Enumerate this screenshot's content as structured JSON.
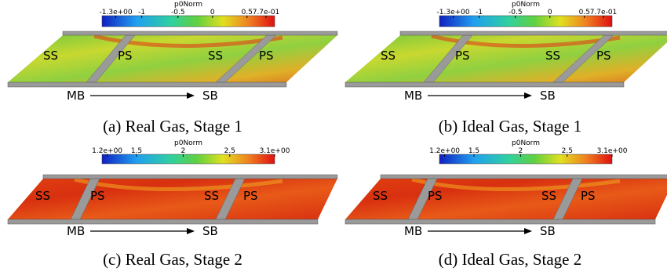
{
  "panels": [
    {
      "caption": "(a) Real Gas, Stage 1",
      "colorbar": {
        "title": "p0Norm",
        "ticks": [
          "-1.3e+00",
          "-1",
          "-0.5",
          "0",
          "0.5",
          "7.7e-01"
        ]
      },
      "labels": [
        "SS",
        "PS",
        "SS",
        "PS"
      ],
      "flow": {
        "from": "MB",
        "to": "SB"
      }
    },
    {
      "caption": "(b) Ideal Gas, Stage 1",
      "colorbar": {
        "title": "p0Norm",
        "ticks": [
          "-1.3e+00",
          "-1",
          "-0.5",
          "0",
          "0.5",
          "7.7e-01"
        ]
      },
      "labels": [
        "SS",
        "PS",
        "SS",
        "PS"
      ],
      "flow": {
        "from": "MB",
        "to": "SB"
      }
    },
    {
      "caption": "(c) Real Gas, Stage 2",
      "colorbar": {
        "title": "p0Norm",
        "ticks": [
          "1.2e+00",
          "1.5",
          "2",
          "2.5",
          "3.1e+00"
        ]
      },
      "labels": [
        "SS",
        "PS",
        "SS",
        "PS"
      ],
      "flow": {
        "from": "MB",
        "to": "SB"
      }
    },
    {
      "caption": "(d) Ideal Gas, Stage 2",
      "colorbar": {
        "title": "p0Norm",
        "ticks": [
          "1.2e+00",
          "1.5",
          "2",
          "2.5",
          "3.1e+00"
        ]
      },
      "labels": [
        "SS",
        "PS",
        "SS",
        "PS"
      ],
      "flow": {
        "from": "MB",
        "to": "SB"
      }
    }
  ]
}
